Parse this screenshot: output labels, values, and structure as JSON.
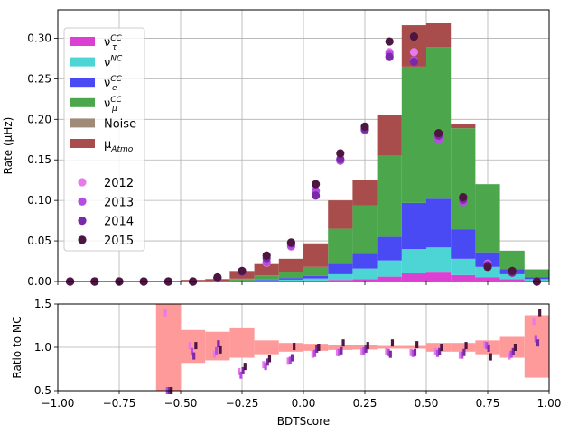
{
  "chart_data": [
    {
      "type": "bar",
      "stacked": true,
      "xlabel": "",
      "ylabel": "Rate (μHz)",
      "xlim": [
        -1.0,
        1.0
      ],
      "ylim": [
        0,
        0.335
      ],
      "xticks": [
        -1.0,
        -0.75,
        -0.5,
        -0.25,
        0.0,
        0.25,
        0.5,
        0.75,
        1.0
      ],
      "yticks": [
        "0.00",
        "0.05",
        "0.10",
        "0.15",
        "0.20",
        "0.25",
        "0.30"
      ],
      "grid": true,
      "legend_position": "top-left",
      "bin_edges": [
        -1.0,
        -0.9,
        -0.8,
        -0.7,
        -0.6,
        -0.5,
        -0.4,
        -0.3,
        -0.2,
        -0.1,
        0.0,
        0.1,
        0.2,
        0.3,
        0.4,
        0.5,
        0.6,
        0.7,
        0.8,
        0.9,
        1.0
      ],
      "series": [
        {
          "name": "ντCC",
          "label_main": "ν",
          "label_sup": "CC",
          "label_sub": "τ",
          "color": "#dc40d2",
          "values": [
            0,
            0,
            0,
            0,
            0,
            0,
            0,
            0,
            0.0005,
            0.0008,
            0.0012,
            0.002,
            0.003,
            0.006,
            0.01,
            0.011,
            0.008,
            0.005,
            0.003,
            0.001
          ]
        },
        {
          "name": "νNC",
          "label_main": "ν",
          "label_sup": "NC",
          "label_sub": "",
          "color": "#4dd4d4",
          "values": [
            0,
            0,
            0,
            0,
            0,
            0,
            0,
            0.0005,
            0.001,
            0.0015,
            0.0025,
            0.007,
            0.013,
            0.02,
            0.03,
            0.031,
            0.02,
            0.013,
            0.006,
            0.002
          ]
        },
        {
          "name": "νeCC",
          "label_main": "ν",
          "label_sup": "CC",
          "label_sub": "e",
          "color": "#4a4af5",
          "values": [
            0,
            0,
            0,
            0,
            0,
            0,
            0,
            0.0007,
            0.001,
            0.002,
            0.0033,
            0.013,
            0.018,
            0.029,
            0.057,
            0.06,
            0.036,
            0.018,
            0.006,
            0.002
          ]
        },
        {
          "name": "νμCC",
          "label_main": "ν",
          "label_sup": "CC",
          "label_sub": "μ",
          "color": "#4ca64c",
          "values": [
            0,
            0,
            0,
            0,
            0,
            0,
            0,
            0.0018,
            0.005,
            0.0072,
            0.011,
            0.043,
            0.06,
            0.1,
            0.168,
            0.187,
            0.125,
            0.084,
            0.023,
            0.01
          ]
        },
        {
          "name": "Noise",
          "label_main": "Noise",
          "label_sup": "",
          "label_sub": "",
          "color": "#a08a78",
          "values": [
            0,
            0,
            0,
            0,
            0,
            0.001,
            0.001,
            0.0005,
            0,
            0,
            0,
            0,
            0,
            0,
            0,
            0,
            0,
            0,
            0,
            0
          ]
        },
        {
          "name": "μAtmo",
          "label_main": "μ",
          "label_sup": "",
          "label_sub": "Atmo",
          "color": "#a84c4c",
          "values": [
            0,
            0,
            0,
            0,
            0,
            0.001,
            0.002,
            0.0095,
            0.014,
            0.0165,
            0.029,
            0.035,
            0.031,
            0.05,
            0.051,
            0.03,
            0.005,
            0,
            0,
            0
          ]
        }
      ],
      "points": [
        {
          "name": "2012",
          "color": "#e879e8",
          "values": [
            0,
            0,
            0,
            0,
            0,
            0,
            0.004,
            0.012,
            0.023,
            0.043,
            0.111,
            0.149,
            0.187,
            0.283,
            0.283,
            0.181,
            0.1,
            0.022,
            0.011,
            0
          ]
        },
        {
          "name": "2013",
          "color": "#b44ee0",
          "values": [
            0,
            0,
            0,
            0,
            0,
            0,
            0.004,
            0.013,
            0.024,
            0.044,
            0.112,
            0.149,
            0.187,
            0.281,
            0.273,
            0.175,
            0.098,
            0.021,
            0.011,
            0
          ]
        },
        {
          "name": "2014",
          "color": "#7a2aa8",
          "values": [
            0,
            0,
            0,
            0,
            0,
            0,
            0.005,
            0.012,
            0.029,
            0.047,
            0.106,
            0.151,
            0.188,
            0.277,
            0.271,
            0.18,
            0.101,
            0.02,
            0.011,
            0
          ]
        },
        {
          "name": "2015",
          "color": "#4c1640",
          "values": [
            0,
            0,
            0,
            0,
            0,
            0,
            0.005,
            0.013,
            0.032,
            0.048,
            0.12,
            0.158,
            0.191,
            0.296,
            0.302,
            0.183,
            0.104,
            0.018,
            0.013,
            0
          ]
        }
      ]
    },
    {
      "type": "bar",
      "xlabel": "BDTScore",
      "ylabel": "Ratio to MC",
      "xlim": [
        -1.0,
        1.0
      ],
      "ylim": [
        0.5,
        1.5
      ],
      "xticks": [
        "−1.00",
        "−0.75",
        "−0.50",
        "−0.25",
        "0.00",
        "0.25",
        "0.50",
        "0.75",
        "1.00"
      ],
      "yticks": [
        "0.5",
        "1.0",
        "1.5"
      ],
      "grid": true,
      "band_color": "#ff9a9a",
      "bin_centers": [
        -0.55,
        -0.45,
        -0.35,
        -0.25,
        -0.15,
        -0.05,
        0.05,
        0.15,
        0.25,
        0.35,
        0.45,
        0.55,
        0.65,
        0.75,
        0.85,
        0.95
      ],
      "band": [
        {
          "lo": 0.5,
          "hi": 1.5
        },
        {
          "lo": 0.82,
          "hi": 1.2
        },
        {
          "lo": 0.85,
          "hi": 1.18
        },
        {
          "lo": 0.88,
          "hi": 1.22
        },
        {
          "lo": 0.92,
          "hi": 1.08
        },
        {
          "lo": 0.95,
          "hi": 1.05
        },
        {
          "lo": 0.96,
          "hi": 1.04
        },
        {
          "lo": 0.97,
          "hi": 1.03
        },
        {
          "lo": 0.975,
          "hi": 1.025
        },
        {
          "lo": 0.985,
          "hi": 1.015
        },
        {
          "lo": 0.985,
          "hi": 1.015
        },
        {
          "lo": 0.95,
          "hi": 1.05
        },
        {
          "lo": 0.95,
          "hi": 1.05
        },
        {
          "lo": 0.92,
          "hi": 1.08
        },
        {
          "lo": 0.88,
          "hi": 1.12
        },
        {
          "lo": 0.65,
          "hi": 1.37
        }
      ],
      "ratios": [
        {
          "name": "2012",
          "color": "#e879e8",
          "values": [
            1.4,
            1.02,
            0.92,
            0.72,
            0.8,
            0.84,
            0.92,
            0.94,
            0.95,
            0.95,
            0.94,
            0.95,
            0.91,
            1.03,
            0.9,
            1.3
          ]
        },
        {
          "name": "2013",
          "color": "#b44ee0",
          "values": [
            0.5,
            0.95,
            0.96,
            0.68,
            0.78,
            0.85,
            0.93,
            0.94,
            0.96,
            0.94,
            0.93,
            0.93,
            0.91,
            1.02,
            0.92,
            1.1
          ]
        },
        {
          "name": "2014",
          "color": "#7a2aa8",
          "values": [
            0.5,
            0.9,
            1.04,
            0.73,
            0.83,
            0.88,
            0.98,
            0.96,
            0.98,
            0.92,
            0.94,
            0.95,
            0.94,
            0.99,
            0.95,
            1.05
          ]
        },
        {
          "name": "2015",
          "color": "#4c1640",
          "values": [
            0.5,
            1.02,
            0.97,
            0.78,
            0.87,
            1.01,
            1.0,
            1.05,
            1.02,
            1.05,
            1.03,
            1.0,
            1.02,
            0.89,
            1.0,
            1.4
          ]
        }
      ]
    }
  ]
}
